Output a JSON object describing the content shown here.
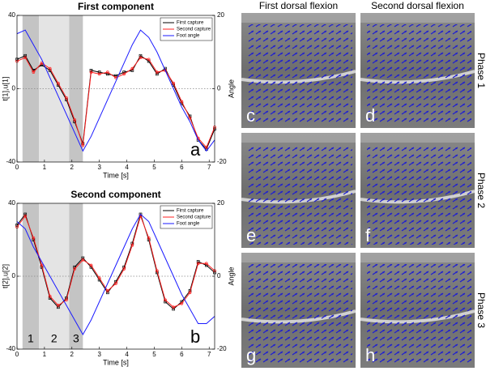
{
  "chart_data": [
    {
      "type": "line",
      "title": "First component",
      "xlabel": "Time [s]",
      "ylabel": "t[1],u[1]",
      "y2label": "Angle",
      "annotation": "a",
      "legend": "upper right",
      "zero_line": true,
      "xlim": [
        0,
        7.2
      ],
      "xticks": [
        0,
        1,
        2,
        3,
        4,
        5,
        6,
        7
      ],
      "ylim": [
        -40,
        40
      ],
      "yticks": [
        -40,
        0,
        40
      ],
      "y2lim": [
        -20,
        20
      ],
      "y2ticks": [
        -20,
        0,
        20
      ],
      "shaded_regions": [
        {
          "start": 0.2,
          "end": 0.8,
          "color": "#c4c4c4"
        },
        {
          "start": 0.8,
          "end": 1.9,
          "color": "#e4e4e4"
        },
        {
          "start": 1.9,
          "end": 2.4,
          "color": "#c4c4c4"
        }
      ],
      "x": [
        0,
        0.3,
        0.6,
        0.9,
        1.2,
        1.5,
        1.8,
        2.1,
        2.4,
        2.7,
        3.0,
        3.3,
        3.6,
        3.9,
        4.2,
        4.5,
        4.8,
        5.1,
        5.4,
        5.7,
        6.0,
        6.3,
        6.6,
        6.9,
        7.2
      ],
      "series": [
        {
          "name": "First capture",
          "color": "#000000",
          "marker": "square",
          "values": [
            16,
            18,
            10,
            13,
            10,
            2,
            -6,
            -18,
            -30,
            10,
            9,
            8,
            7,
            9,
            10,
            18,
            15,
            8,
            11,
            2,
            -8,
            -15,
            -28,
            -33,
            -22
          ]
        },
        {
          "name": "Second capture",
          "color": "#ff2020",
          "marker": "circle",
          "values": [
            15,
            17,
            9,
            14,
            11,
            3,
            -5,
            -17,
            -31,
            9,
            8,
            9,
            6,
            8,
            11,
            17,
            16,
            9,
            10,
            3,
            -7,
            -16,
            -27,
            -32,
            -21
          ]
        },
        {
          "name": "Foot angle",
          "color": "#1a1aff",
          "axis": "y2",
          "values": [
            15,
            16,
            12,
            8,
            3,
            -2,
            -7,
            -12,
            -17,
            -13,
            -8,
            -3,
            2,
            7,
            12,
            16,
            14,
            10,
            5,
            0,
            -5,
            -9,
            -14,
            -17,
            -14
          ]
        }
      ]
    },
    {
      "type": "line",
      "title": "Second component",
      "xlabel": "Time [s]",
      "ylabel": "t[2],u[2]",
      "y2label": "Angle",
      "annotation": "b",
      "legend": "upper right",
      "zero_line": true,
      "xlim": [
        0,
        7.2
      ],
      "xticks": [
        0,
        1,
        2,
        3,
        4,
        5,
        6,
        7
      ],
      "ylim": [
        -40,
        40
      ],
      "yticks": [
        -40,
        0,
        40
      ],
      "y2lim": [
        -20,
        20
      ],
      "y2ticks": [
        -20,
        0,
        20
      ],
      "shaded_regions": [
        {
          "start": 0.2,
          "end": 0.8,
          "color": "#c4c4c4",
          "label": "1"
        },
        {
          "start": 0.8,
          "end": 1.9,
          "color": "#e4e4e4",
          "label": "2"
        },
        {
          "start": 1.9,
          "end": 2.4,
          "color": "#c4c4c4",
          "label": "3"
        }
      ],
      "x": [
        0,
        0.3,
        0.6,
        0.9,
        1.2,
        1.5,
        1.8,
        2.1,
        2.4,
        2.7,
        3.0,
        3.3,
        3.6,
        3.9,
        4.2,
        4.5,
        4.8,
        5.1,
        5.4,
        5.7,
        6.0,
        6.3,
        6.6,
        6.9,
        7.2
      ],
      "series": [
        {
          "name": "First capture",
          "color": "#000000",
          "marker": "square",
          "values": [
            28,
            34,
            20,
            5,
            -12,
            -17,
            -12,
            5,
            10,
            5,
            -2,
            -9,
            -3,
            5,
            18,
            34,
            20,
            2,
            -14,
            -18,
            -14,
            -8,
            8,
            6,
            2
          ]
        },
        {
          "name": "Second capture",
          "color": "#ff2020",
          "marker": "circle",
          "values": [
            27,
            33,
            21,
            6,
            -11,
            -16,
            -13,
            4,
            9,
            6,
            -1,
            -8,
            -4,
            4,
            17,
            33,
            21,
            3,
            -13,
            -17,
            -15,
            -9,
            7,
            7,
            3
          ]
        },
        {
          "name": "Foot angle",
          "color": "#1a1aff",
          "axis": "y2",
          "values": [
            15,
            13,
            8,
            4,
            0,
            -4,
            -8,
            -12,
            -16,
            -12,
            -7,
            -2,
            3,
            8,
            13,
            17,
            15,
            10,
            5,
            0,
            -5,
            -9,
            -13,
            -13,
            -11
          ]
        }
      ]
    }
  ],
  "image_panels": {
    "columns": [
      "First dorsal flexion",
      "Second dorsal flexion"
    ],
    "rows": [
      "Phase 1",
      "Phase 2",
      "Phase 3"
    ],
    "letters": [
      [
        "c",
        "d"
      ],
      [
        "e",
        "f"
      ],
      [
        "g",
        "h"
      ]
    ]
  }
}
